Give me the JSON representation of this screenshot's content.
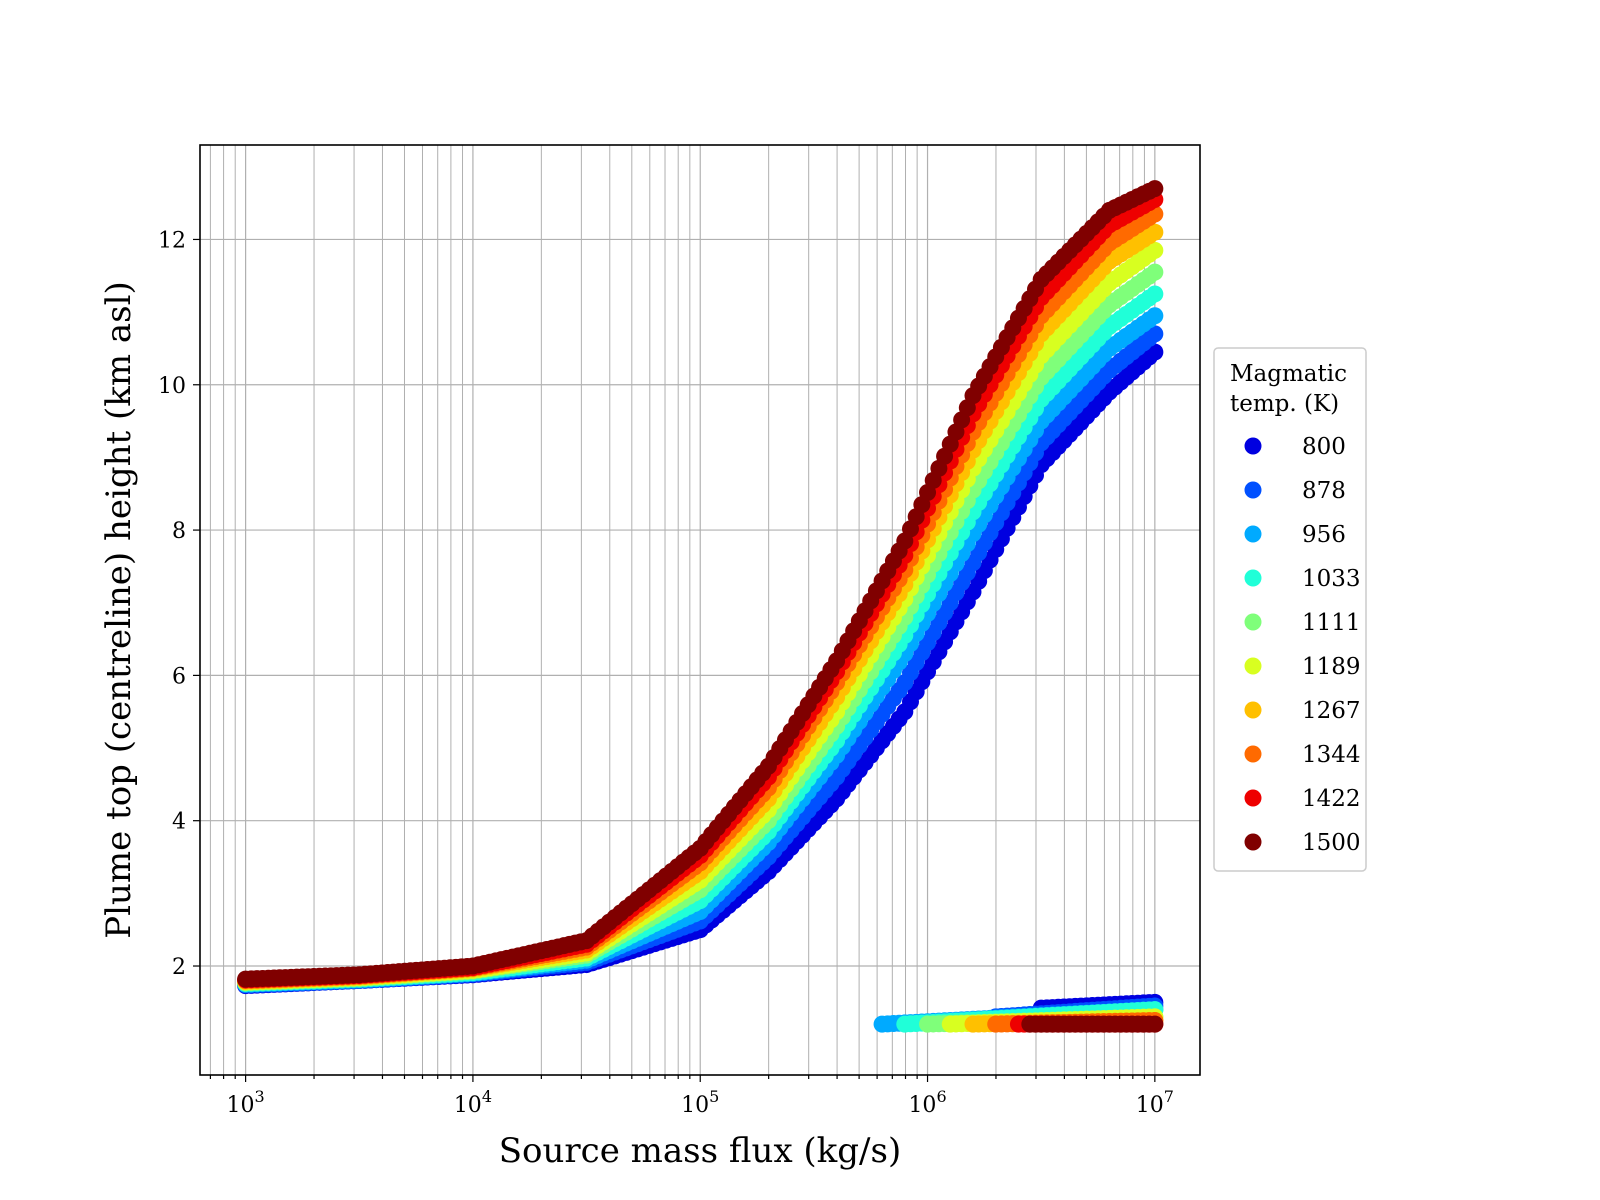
{
  "chart_data": {
    "type": "scatter",
    "title": "",
    "xlabel": "Source mass flux (kg/s)",
    "ylabel": "Plume top (centreline) height (km asl)",
    "xscale": "log",
    "xlim": [
      630,
      15800000
    ],
    "ylim": [
      0.5,
      13.3
    ],
    "grid": true,
    "x_ticks": [
      {
        "base": "10",
        "exp": "3",
        "value": 1000
      },
      {
        "base": "10",
        "exp": "4",
        "value": 10000
      },
      {
        "base": "10",
        "exp": "5",
        "value": 100000
      },
      {
        "base": "10",
        "exp": "6",
        "value": 1000000
      },
      {
        "base": "10",
        "exp": "7",
        "value": 10000000
      }
    ],
    "y_ticks": [
      "2",
      "4",
      "6",
      "8",
      "10",
      "12"
    ],
    "legend": {
      "title_lines": [
        "Magmatic",
        "temp. (K)"
      ],
      "placement": "right-outside"
    },
    "series": [
      {
        "name": "800",
        "color": "#0000e0",
        "main": [
          [
            3,
            1.73
          ],
          [
            3.5,
            1.8
          ],
          [
            4,
            1.88
          ],
          [
            4.5,
            2.02
          ],
          [
            5,
            2.5
          ],
          [
            5.3,
            3.3
          ],
          [
            5.6,
            4.3
          ],
          [
            5.9,
            5.5
          ],
          [
            6.2,
            7.15
          ],
          [
            6.5,
            8.9
          ],
          [
            6.8,
            9.9
          ],
          [
            7,
            10.45
          ]
        ],
        "low": [
          [
            6.5,
            1.42
          ],
          [
            7,
            1.5
          ]
        ]
      },
      {
        "name": "878",
        "color": "#0050ff",
        "main": [
          [
            3,
            1.74
          ],
          [
            3.5,
            1.8
          ],
          [
            4,
            1.89
          ],
          [
            4.5,
            2.05
          ],
          [
            5,
            2.62
          ],
          [
            5.3,
            3.5
          ],
          [
            5.6,
            4.6
          ],
          [
            5.9,
            5.9
          ],
          [
            6.2,
            7.55
          ],
          [
            6.5,
            9.2
          ],
          [
            6.8,
            10.2
          ],
          [
            7,
            10.7
          ]
        ],
        "low": [
          [
            6.3,
            1.3
          ],
          [
            7,
            1.45
          ]
        ]
      },
      {
        "name": "956",
        "color": "#00aaff",
        "main": [
          [
            3,
            1.75
          ],
          [
            3.5,
            1.81
          ],
          [
            4,
            1.9
          ],
          [
            4.5,
            2.08
          ],
          [
            5,
            2.75
          ],
          [
            5.3,
            3.7
          ],
          [
            5.6,
            4.9
          ],
          [
            5.9,
            6.3
          ],
          [
            6.2,
            7.95
          ],
          [
            6.5,
            9.5
          ],
          [
            6.8,
            10.5
          ],
          [
            7,
            10.95
          ]
        ],
        "low": [
          [
            5.8,
            1.2
          ],
          [
            7,
            1.4
          ]
        ]
      },
      {
        "name": "1033",
        "color": "#20ffd8",
        "main": [
          [
            3,
            1.76
          ],
          [
            3.5,
            1.82
          ],
          [
            4,
            1.91
          ],
          [
            4.5,
            2.11
          ],
          [
            5,
            2.9
          ],
          [
            5.3,
            3.85
          ],
          [
            5.6,
            5.1
          ],
          [
            5.9,
            6.55
          ],
          [
            6.2,
            8.25
          ],
          [
            6.5,
            9.8
          ],
          [
            6.8,
            10.8
          ],
          [
            7,
            11.25
          ]
        ],
        "low": [
          [
            5.9,
            1.2
          ],
          [
            7,
            1.4
          ]
        ]
      },
      {
        "name": "1111",
        "color": "#7fff7a",
        "main": [
          [
            3,
            1.77
          ],
          [
            3.5,
            1.83
          ],
          [
            4,
            1.93
          ],
          [
            4.5,
            2.15
          ],
          [
            5,
            3.05
          ],
          [
            5.3,
            4.0
          ],
          [
            5.6,
            5.3
          ],
          [
            5.9,
            6.8
          ],
          [
            6.2,
            8.55
          ],
          [
            6.5,
            10.1
          ],
          [
            6.8,
            11.1
          ],
          [
            7,
            11.55
          ]
        ],
        "low": [
          [
            6.0,
            1.2
          ],
          [
            7,
            1.3
          ]
        ]
      },
      {
        "name": "1189",
        "color": "#d8ff20",
        "main": [
          [
            3,
            1.78
          ],
          [
            3.5,
            1.84
          ],
          [
            4,
            1.94
          ],
          [
            4.5,
            2.18
          ],
          [
            5,
            3.18
          ],
          [
            5.3,
            4.15
          ],
          [
            5.6,
            5.5
          ],
          [
            5.9,
            7.05
          ],
          [
            6.2,
            8.85
          ],
          [
            6.5,
            10.4
          ],
          [
            6.8,
            11.4
          ],
          [
            7,
            11.85
          ]
        ],
        "low": [
          [
            6.1,
            1.2
          ],
          [
            7,
            1.3
          ]
        ]
      },
      {
        "name": "1267",
        "color": "#ffc000",
        "main": [
          [
            3,
            1.79
          ],
          [
            3.5,
            1.85
          ],
          [
            4,
            1.96
          ],
          [
            4.5,
            2.22
          ],
          [
            5,
            3.3
          ],
          [
            5.3,
            4.3
          ],
          [
            5.6,
            5.7
          ],
          [
            5.9,
            7.25
          ],
          [
            6.2,
            9.1
          ],
          [
            6.5,
            10.7
          ],
          [
            6.8,
            11.7
          ],
          [
            7,
            12.1
          ]
        ],
        "low": [
          [
            6.2,
            1.2
          ],
          [
            7,
            1.25
          ]
        ]
      },
      {
        "name": "1344",
        "color": "#ff6a00",
        "main": [
          [
            3,
            1.8
          ],
          [
            3.5,
            1.86
          ],
          [
            4,
            1.97
          ],
          [
            4.5,
            2.26
          ],
          [
            5,
            3.42
          ],
          [
            5.3,
            4.45
          ],
          [
            5.6,
            5.9
          ],
          [
            5.9,
            7.45
          ],
          [
            6.2,
            9.35
          ],
          [
            6.5,
            10.95
          ],
          [
            6.8,
            11.95
          ],
          [
            7,
            12.35
          ]
        ],
        "low": [
          [
            6.3,
            1.2
          ],
          [
            7,
            1.25
          ]
        ]
      },
      {
        "name": "1422",
        "color": "#ee0000",
        "main": [
          [
            3,
            1.81
          ],
          [
            3.5,
            1.87
          ],
          [
            4,
            1.98
          ],
          [
            4.5,
            2.3
          ],
          [
            5,
            3.52
          ],
          [
            5.3,
            4.6
          ],
          [
            5.6,
            6.05
          ],
          [
            5.9,
            7.65
          ],
          [
            6.2,
            9.6
          ],
          [
            6.5,
            11.2
          ],
          [
            6.8,
            12.2
          ],
          [
            7,
            12.55
          ]
        ],
        "low": [
          [
            6.4,
            1.2
          ],
          [
            7,
            1.2
          ]
        ]
      },
      {
        "name": "1500",
        "color": "#800000",
        "main": [
          [
            3,
            1.82
          ],
          [
            3.5,
            1.88
          ],
          [
            4,
            2.0
          ],
          [
            4.5,
            2.35
          ],
          [
            5,
            3.62
          ],
          [
            5.3,
            4.75
          ],
          [
            5.6,
            6.2
          ],
          [
            5.9,
            7.85
          ],
          [
            6.2,
            9.85
          ],
          [
            6.5,
            11.45
          ],
          [
            6.8,
            12.4
          ],
          [
            7,
            12.7
          ]
        ],
        "low": [
          [
            6.45,
            1.2
          ],
          [
            7,
            1.2
          ]
        ]
      }
    ]
  }
}
